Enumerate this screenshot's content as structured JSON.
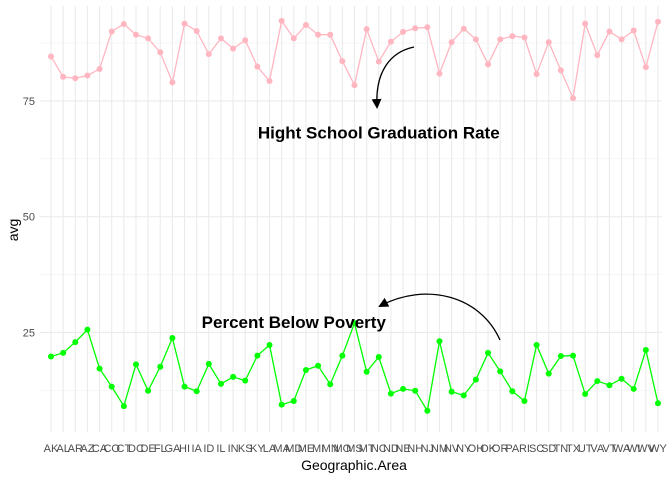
{
  "chart_data": {
    "type": "line",
    "xlabel": "Geographic.Area",
    "ylabel": "avg",
    "ylim": [
      3.5,
      95.5
    ],
    "yticks": [
      25,
      50,
      75
    ],
    "grid": true,
    "categories": [
      "AK",
      "AL",
      "AR",
      "AZ",
      "CA",
      "CO",
      "CT",
      "DC",
      "DE",
      "FL",
      "GA",
      "HI",
      "IA",
      "ID",
      "IL",
      "IN",
      "KS",
      "KY",
      "LA",
      "MA",
      "MD",
      "ME",
      "MI",
      "MN",
      "MO",
      "MS",
      "MT",
      "NC",
      "ND",
      "NE",
      "NH",
      "NJ",
      "NM",
      "NV",
      "NY",
      "OH",
      "OK",
      "OR",
      "PA",
      "RI",
      "SC",
      "SD",
      "TN",
      "TX",
      "UT",
      "VA",
      "VT",
      "WA",
      "WI",
      "WV",
      "WY"
    ],
    "series": [
      {
        "color": "#ffb6c1",
        "values": [
          84.6,
          80.2,
          79.9,
          80.5,
          81.9,
          90.0,
          91.6,
          89.3,
          88.5,
          85.5,
          79.0,
          91.7,
          90.1,
          85.1,
          88.5,
          86.3,
          88.1,
          82.4,
          79.3,
          92.3,
          88.5,
          91.4,
          89.3,
          89.3,
          83.6,
          78.4,
          90.5,
          83.5,
          87.8,
          89.9,
          90.7,
          90.9,
          80.9,
          87.7,
          90.6,
          88.3,
          82.9,
          88.3,
          89.0,
          88.7,
          80.8,
          87.7,
          81.6,
          75.6,
          91.7,
          84.9,
          90.0,
          88.3,
          90.2,
          82.3,
          92.1
        ]
      },
      {
        "color": "#00ff00",
        "values": [
          19.8,
          20.6,
          22.9,
          25.6,
          17.2,
          13.3,
          9.1,
          18.1,
          12.4,
          17.6,
          23.8,
          13.3,
          12.3,
          18.2,
          13.9,
          15.4,
          14.6,
          20.0,
          22.3,
          9.4,
          10.2,
          16.9,
          17.8,
          13.8,
          20.0,
          27.0,
          16.5,
          19.7,
          11.8,
          12.8,
          12.4,
          8.1,
          23.1,
          12.2,
          11.4,
          14.8,
          20.6,
          16.6,
          12.3,
          10.2,
          22.3,
          16.1,
          19.9,
          20.0,
          11.7,
          14.5,
          13.6,
          15.0,
          12.8,
          21.2,
          9.7
        ]
      }
    ],
    "annotations": [
      {
        "text": "Hight School Graduation Rate",
        "x": "NC",
        "y": 68.2
      },
      {
        "text": "Percent Below Poverty",
        "x": "MD",
        "y": 27.3
      }
    ]
  }
}
